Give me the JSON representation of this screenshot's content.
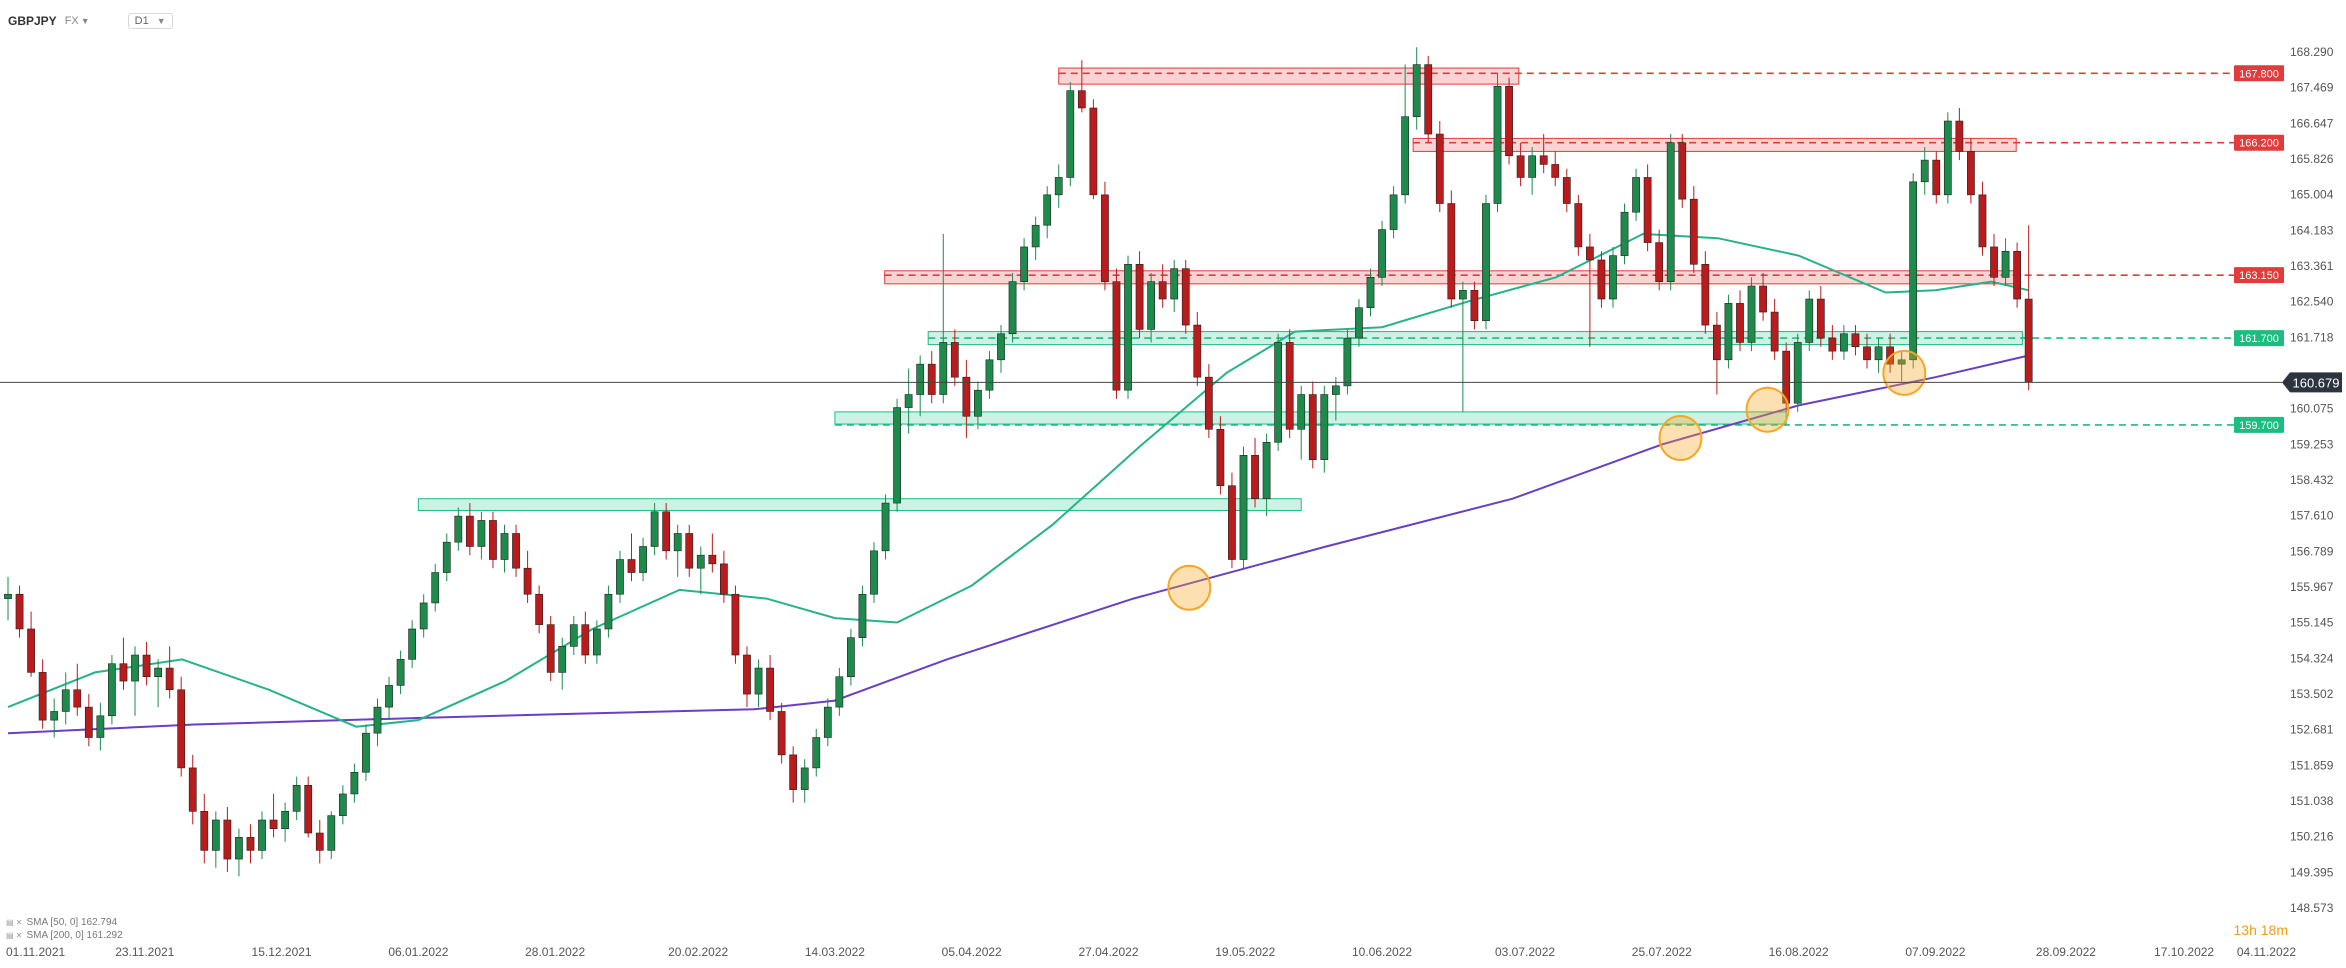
{
  "header": {
    "symbol": "GBPJPY",
    "market": "FX",
    "timeframe": "D1"
  },
  "indicators": [
    {
      "label": "SMA [50, 0] 162.794",
      "color": "#26b38a"
    },
    {
      "label": "SMA [200, 0] 161.292",
      "color": "#6a3fc2"
    }
  ],
  "countdown": "13h 18m",
  "colors": {
    "bull": "#1e8a4c",
    "bear": "#b81c1c",
    "resistance": "#e23b3b",
    "support": "#1dbd82",
    "sma50": "#26b38a",
    "sma200": "#6a3fc2",
    "touch": "#f5a623",
    "price_line": "#444444",
    "current_tag": "#2d3440"
  },
  "chart_data": {
    "type": "candlestick",
    "symbol": "GBPJPY",
    "timeframe": "D1",
    "ylim": [
      148.573,
      168.8
    ],
    "y_ticks": [
      168.29,
      167.469,
      166.647,
      165.826,
      165.004,
      164.183,
      163.361,
      162.54,
      161.718,
      160.896,
      160.075,
      159.253,
      158.432,
      157.61,
      156.789,
      155.967,
      155.145,
      154.324,
      153.502,
      152.681,
      151.859,
      151.038,
      150.216,
      149.395,
      148.573
    ],
    "x_ticks": [
      "01.11.2021",
      "23.11.2021",
      "15.12.2021",
      "06.01.2022",
      "28.01.2022",
      "20.02.2022",
      "14.03.2022",
      "05.04.2022",
      "27.04.2022",
      "19.05.2022",
      "10.06.2022",
      "03.07.2022",
      "25.07.2022",
      "16.08.2022",
      "07.09.2022",
      "28.09.2022",
      "17.10.2022",
      "04.11.2022"
    ],
    "candle_span": {
      "from": "01.11.2021",
      "to": "22.09.2022"
    },
    "current_price": 160.679,
    "horizontal_levels": [
      {
        "label": "167.800",
        "value": 167.8,
        "kind": "resistance"
      },
      {
        "label": "166.200",
        "value": 166.2,
        "kind": "resistance"
      },
      {
        "label": "163.150",
        "value": 163.15,
        "kind": "resistance"
      },
      {
        "label": "161.700",
        "value": 161.7,
        "kind": "support"
      },
      {
        "label": "159.700",
        "value": 159.7,
        "kind": "support"
      }
    ],
    "zones": [
      {
        "from": "19.04.2022",
        "to": "02.07.2022",
        "low": 167.55,
        "high": 167.92,
        "kind": "resistance"
      },
      {
        "from": "15.06.2022",
        "to": "20.09.2022",
        "low": 166.0,
        "high": 166.3,
        "kind": "resistance"
      },
      {
        "from": "22.03.2022",
        "to": "20.09.2022",
        "low": 162.95,
        "high": 163.25,
        "kind": "resistance"
      },
      {
        "from": "29.03.2022",
        "to": "21.09.2022",
        "low": 161.55,
        "high": 161.85,
        "kind": "support"
      },
      {
        "from": "14.03.2022",
        "to": "14.08.2022",
        "low": 159.72,
        "high": 160.0,
        "kind": "support"
      },
      {
        "from": "06.01.2022",
        "to": "28.05.2022",
        "low": 157.73,
        "high": 158.0,
        "kind": "support"
      }
    ],
    "sma50": [
      [
        "01.11.2021",
        153.2
      ],
      [
        "15.11.2021",
        154.0
      ],
      [
        "29.11.2021",
        154.3
      ],
      [
        "13.12.2021",
        153.6
      ],
      [
        "27.12.2021",
        152.75
      ],
      [
        "06.01.2022",
        152.9
      ],
      [
        "20.01.2022",
        153.8
      ],
      [
        "03.02.2022",
        155.0
      ],
      [
        "17.02.2022",
        155.9
      ],
      [
        "03.03.2022",
        155.7
      ],
      [
        "14.03.2022",
        155.25
      ],
      [
        "24.03.2022",
        155.15
      ],
      [
        "05.04.2022",
        156.0
      ],
      [
        "18.04.2022",
        157.4
      ],
      [
        "02.05.2022",
        159.2
      ],
      [
        "16.05.2022",
        160.9
      ],
      [
        "27.05.2022",
        161.85
      ],
      [
        "10.06.2022",
        161.95
      ],
      [
        "24.06.2022",
        162.55
      ],
      [
        "08.07.2022",
        163.1
      ],
      [
        "22.07.2022",
        164.1
      ],
      [
        "03.08.2022",
        164.0
      ],
      [
        "16.08.2022",
        163.6
      ],
      [
        "30.08.2022",
        162.75
      ],
      [
        "07.09.2022",
        162.8
      ],
      [
        "16.09.2022",
        163.0
      ],
      [
        "22.09.2022",
        162.8
      ]
    ],
    "sma200": [
      [
        "01.11.2021",
        152.6
      ],
      [
        "01.12.2021",
        152.8
      ],
      [
        "06.01.2022",
        152.95
      ],
      [
        "01.02.2022",
        153.05
      ],
      [
        "01.03.2022",
        153.15
      ],
      [
        "14.03.2022",
        153.35
      ],
      [
        "01.04.2022",
        154.3
      ],
      [
        "01.05.2022",
        155.7
      ],
      [
        "01.06.2022",
        156.9
      ],
      [
        "01.07.2022",
        158.0
      ],
      [
        "25.07.2022",
        159.25
      ],
      [
        "16.08.2022",
        160.15
      ],
      [
        "07.09.2022",
        160.8
      ],
      [
        "22.09.2022",
        161.3
      ]
    ],
    "touch_points": [
      {
        "date": "10.05.2022",
        "value": 155.95
      },
      {
        "date": "28.07.2022",
        "value": 159.4
      },
      {
        "date": "11.08.2022",
        "value": 160.05
      },
      {
        "date": "02.09.2022",
        "value": 160.9
      }
    ],
    "candles": [
      [
        155.7,
        156.2,
        155.2,
        155.8
      ],
      [
        155.8,
        156.0,
        154.8,
        155.0
      ],
      [
        155.0,
        155.4,
        153.9,
        154.0
      ],
      [
        154.0,
        154.3,
        152.7,
        152.9
      ],
      [
        152.9,
        153.4,
        152.5,
        153.1
      ],
      [
        153.1,
        154.0,
        152.8,
        153.6
      ],
      [
        153.6,
        154.2,
        153.0,
        153.2
      ],
      [
        153.2,
        153.5,
        152.3,
        152.5
      ],
      [
        152.5,
        153.3,
        152.2,
        153.0
      ],
      [
        153.0,
        154.4,
        152.8,
        154.2
      ],
      [
        154.2,
        154.8,
        153.6,
        153.8
      ],
      [
        153.8,
        154.6,
        153.0,
        154.4
      ],
      [
        154.4,
        154.7,
        153.7,
        153.9
      ],
      [
        153.9,
        154.3,
        153.2,
        154.1
      ],
      [
        154.1,
        154.6,
        153.4,
        153.6
      ],
      [
        153.6,
        153.9,
        151.6,
        151.8
      ],
      [
        151.8,
        152.1,
        150.5,
        150.8
      ],
      [
        150.8,
        151.2,
        149.6,
        149.9
      ],
      [
        149.9,
        150.8,
        149.5,
        150.6
      ],
      [
        150.6,
        150.9,
        149.4,
        149.7
      ],
      [
        149.7,
        150.4,
        149.3,
        150.2
      ],
      [
        150.2,
        150.5,
        149.6,
        149.9
      ],
      [
        149.9,
        150.8,
        149.7,
        150.6
      ],
      [
        150.6,
        151.2,
        150.2,
        150.4
      ],
      [
        150.4,
        151.0,
        150.1,
        150.8
      ],
      [
        150.8,
        151.6,
        150.6,
        151.4
      ],
      [
        151.4,
        151.6,
        150.2,
        150.3
      ],
      [
        150.3,
        150.6,
        149.6,
        149.9
      ],
      [
        149.9,
        150.8,
        149.7,
        150.7
      ],
      [
        150.7,
        151.4,
        150.5,
        151.2
      ],
      [
        151.2,
        151.9,
        151.0,
        151.7
      ],
      [
        151.7,
        152.8,
        151.5,
        152.6
      ],
      [
        152.6,
        153.4,
        152.3,
        153.2
      ],
      [
        153.2,
        153.9,
        152.9,
        153.7
      ],
      [
        153.7,
        154.5,
        153.5,
        154.3
      ],
      [
        154.3,
        155.2,
        154.1,
        155.0
      ],
      [
        155.0,
        155.8,
        154.8,
        155.6
      ],
      [
        155.6,
        156.5,
        155.4,
        156.3
      ],
      [
        156.3,
        157.2,
        156.1,
        157.0
      ],
      [
        157.0,
        157.8,
        156.8,
        157.6
      ],
      [
        157.6,
        157.9,
        156.7,
        156.9
      ],
      [
        156.9,
        157.7,
        156.6,
        157.5
      ],
      [
        157.5,
        157.7,
        156.4,
        156.6
      ],
      [
        156.6,
        157.4,
        156.3,
        157.2
      ],
      [
        157.2,
        157.4,
        156.2,
        156.4
      ],
      [
        156.4,
        156.8,
        155.6,
        155.8
      ],
      [
        155.8,
        156.0,
        154.9,
        155.1
      ],
      [
        155.1,
        155.3,
        153.8,
        154.0
      ],
      [
        154.0,
        154.8,
        153.6,
        154.6
      ],
      [
        154.6,
        155.3,
        154.4,
        155.1
      ],
      [
        155.1,
        155.4,
        154.2,
        154.4
      ],
      [
        154.4,
        155.2,
        154.2,
        155.0
      ],
      [
        155.0,
        156.0,
        154.8,
        155.8
      ],
      [
        155.8,
        156.8,
        155.6,
        156.6
      ],
      [
        156.6,
        157.2,
        156.1,
        156.3
      ],
      [
        156.3,
        157.1,
        156.1,
        156.9
      ],
      [
        156.9,
        157.9,
        156.7,
        157.7
      ],
      [
        157.7,
        157.9,
        156.6,
        156.8
      ],
      [
        156.8,
        157.4,
        156.2,
        157.2
      ],
      [
        157.2,
        157.4,
        156.2,
        156.4
      ],
      [
        156.4,
        156.9,
        155.8,
        156.7
      ],
      [
        156.7,
        157.2,
        156.3,
        156.5
      ],
      [
        156.5,
        156.8,
        155.6,
        155.8
      ],
      [
        155.8,
        156.0,
        154.2,
        154.4
      ],
      [
        154.4,
        154.6,
        153.2,
        153.5
      ],
      [
        153.5,
        154.3,
        153.2,
        154.1
      ],
      [
        154.1,
        154.4,
        152.9,
        153.1
      ],
      [
        153.1,
        153.3,
        151.9,
        152.1
      ],
      [
        152.1,
        152.3,
        151.0,
        151.3
      ],
      [
        151.3,
        152.0,
        151.0,
        151.8
      ],
      [
        151.8,
        152.7,
        151.6,
        152.5
      ],
      [
        152.5,
        153.4,
        152.3,
        153.2
      ],
      [
        153.2,
        154.1,
        153.0,
        153.9
      ],
      [
        153.9,
        155.0,
        153.7,
        154.8
      ],
      [
        154.8,
        156.0,
        154.6,
        155.8
      ],
      [
        155.8,
        157.0,
        155.6,
        156.8
      ],
      [
        156.8,
        158.1,
        156.6,
        157.9
      ],
      [
        157.9,
        160.3,
        157.7,
        160.1
      ],
      [
        160.1,
        161.0,
        159.5,
        160.4
      ],
      [
        160.4,
        161.3,
        159.9,
        161.1
      ],
      [
        161.1,
        161.4,
        160.2,
        160.4
      ],
      [
        160.4,
        164.1,
        160.2,
        161.6
      ],
      [
        161.6,
        161.9,
        160.6,
        160.8
      ],
      [
        160.8,
        161.2,
        159.4,
        159.9
      ],
      [
        159.9,
        160.7,
        159.6,
        160.5
      ],
      [
        160.5,
        161.4,
        160.3,
        161.2
      ],
      [
        161.2,
        162.0,
        160.9,
        161.8
      ],
      [
        161.8,
        163.2,
        161.6,
        163.0
      ],
      [
        163.0,
        164.0,
        162.8,
        163.8
      ],
      [
        163.8,
        164.5,
        163.5,
        164.3
      ],
      [
        164.3,
        165.2,
        164.0,
        165.0
      ],
      [
        165.0,
        165.7,
        164.7,
        165.4
      ],
      [
        165.4,
        167.6,
        165.2,
        167.4
      ],
      [
        167.4,
        168.1,
        166.9,
        167.0
      ],
      [
        167.0,
        167.2,
        164.9,
        165.0
      ],
      [
        165.0,
        165.3,
        162.8,
        163.0
      ],
      [
        163.0,
        163.3,
        160.3,
        160.5
      ],
      [
        160.5,
        163.6,
        160.3,
        163.4
      ],
      [
        163.4,
        163.7,
        161.7,
        161.9
      ],
      [
        161.9,
        163.2,
        161.6,
        163.0
      ],
      [
        163.0,
        163.4,
        162.4,
        162.6
      ],
      [
        162.6,
        163.5,
        162.3,
        163.3
      ],
      [
        163.3,
        163.5,
        161.8,
        162.0
      ],
      [
        162.0,
        162.3,
        160.6,
        160.8
      ],
      [
        160.8,
        161.1,
        159.4,
        159.6
      ],
      [
        159.6,
        159.9,
        158.1,
        158.3
      ],
      [
        158.3,
        158.6,
        156.4,
        156.6
      ],
      [
        156.6,
        159.2,
        156.4,
        159.0
      ],
      [
        159.0,
        159.4,
        157.8,
        158.0
      ],
      [
        158.0,
        159.5,
        157.6,
        159.3
      ],
      [
        159.3,
        161.8,
        159.1,
        161.6
      ],
      [
        161.6,
        161.9,
        159.4,
        159.6
      ],
      [
        159.6,
        160.6,
        158.9,
        160.4
      ],
      [
        160.4,
        160.7,
        158.7,
        158.9
      ],
      [
        158.9,
        160.6,
        158.6,
        160.4
      ],
      [
        160.4,
        160.8,
        159.8,
        160.6
      ],
      [
        160.6,
        161.9,
        160.4,
        161.7
      ],
      [
        161.7,
        162.6,
        161.5,
        162.4
      ],
      [
        162.4,
        163.3,
        162.2,
        163.1
      ],
      [
        163.1,
        164.4,
        162.9,
        164.2
      ],
      [
        164.2,
        165.2,
        164.0,
        165.0
      ],
      [
        165.0,
        168.0,
        164.8,
        166.8
      ],
      [
        166.8,
        168.4,
        166.5,
        168.0
      ],
      [
        168.0,
        168.2,
        166.2,
        166.4
      ],
      [
        166.4,
        166.7,
        164.6,
        164.8
      ],
      [
        164.8,
        165.1,
        162.4,
        162.6
      ],
      [
        162.6,
        163.0,
        160.0,
        162.8
      ],
      [
        162.8,
        163.0,
        161.9,
        162.1
      ],
      [
        162.1,
        165.0,
        161.9,
        164.8
      ],
      [
        164.8,
        167.8,
        164.6,
        167.5
      ],
      [
        167.5,
        167.7,
        165.7,
        165.9
      ],
      [
        165.9,
        166.2,
        165.2,
        165.4
      ],
      [
        165.4,
        166.1,
        165.0,
        165.9
      ],
      [
        165.9,
        166.4,
        165.5,
        165.7
      ],
      [
        165.7,
        166.0,
        165.2,
        165.4
      ],
      [
        165.4,
        165.6,
        164.6,
        164.8
      ],
      [
        164.8,
        165.0,
        163.6,
        163.8
      ],
      [
        163.8,
        164.1,
        161.5,
        163.5
      ],
      [
        163.5,
        163.7,
        162.4,
        162.6
      ],
      [
        162.6,
        163.8,
        162.4,
        163.6
      ],
      [
        163.6,
        164.8,
        163.4,
        164.6
      ],
      [
        164.6,
        165.6,
        164.4,
        165.4
      ],
      [
        165.4,
        165.7,
        163.7,
        163.9
      ],
      [
        163.9,
        164.2,
        162.8,
        163.0
      ],
      [
        163.0,
        166.4,
        162.8,
        166.2
      ],
      [
        166.2,
        166.4,
        164.7,
        164.9
      ],
      [
        164.9,
        165.2,
        163.2,
        163.4
      ],
      [
        163.4,
        163.7,
        161.8,
        162.0
      ],
      [
        162.0,
        162.3,
        160.4,
        161.2
      ],
      [
        161.2,
        162.7,
        161.0,
        162.5
      ],
      [
        162.5,
        162.8,
        161.4,
        161.6
      ],
      [
        161.6,
        163.1,
        161.4,
        162.9
      ],
      [
        162.9,
        163.2,
        162.1,
        162.3
      ],
      [
        162.3,
        162.6,
        161.2,
        161.4
      ],
      [
        161.4,
        161.6,
        160.0,
        160.2
      ],
      [
        160.2,
        161.8,
        160.0,
        161.6
      ],
      [
        161.6,
        162.8,
        161.4,
        162.6
      ],
      [
        162.6,
        162.9,
        161.5,
        161.7
      ],
      [
        161.7,
        162.0,
        161.2,
        161.4
      ],
      [
        161.4,
        162.0,
        161.2,
        161.8
      ],
      [
        161.8,
        162.0,
        161.3,
        161.5
      ],
      [
        161.5,
        161.8,
        161.0,
        161.2
      ],
      [
        161.2,
        161.7,
        160.9,
        161.5
      ],
      [
        161.5,
        161.8,
        160.9,
        161.1
      ],
      [
        161.1,
        161.4,
        160.7,
        161.2
      ],
      [
        161.2,
        165.5,
        161.0,
        165.3
      ],
      [
        165.3,
        166.1,
        165.0,
        165.8
      ],
      [
        165.8,
        166.0,
        164.8,
        165.0
      ],
      [
        165.0,
        166.9,
        164.8,
        166.7
      ],
      [
        166.7,
        167.0,
        165.8,
        166.0
      ],
      [
        166.0,
        166.3,
        164.8,
        165.0
      ],
      [
        165.0,
        165.3,
        163.6,
        163.8
      ],
      [
        163.8,
        164.1,
        162.9,
        163.1
      ],
      [
        163.1,
        164.0,
        162.9,
        163.7
      ],
      [
        163.7,
        163.9,
        162.4,
        162.6
      ],
      [
        162.6,
        164.3,
        160.5,
        160.7
      ]
    ]
  }
}
